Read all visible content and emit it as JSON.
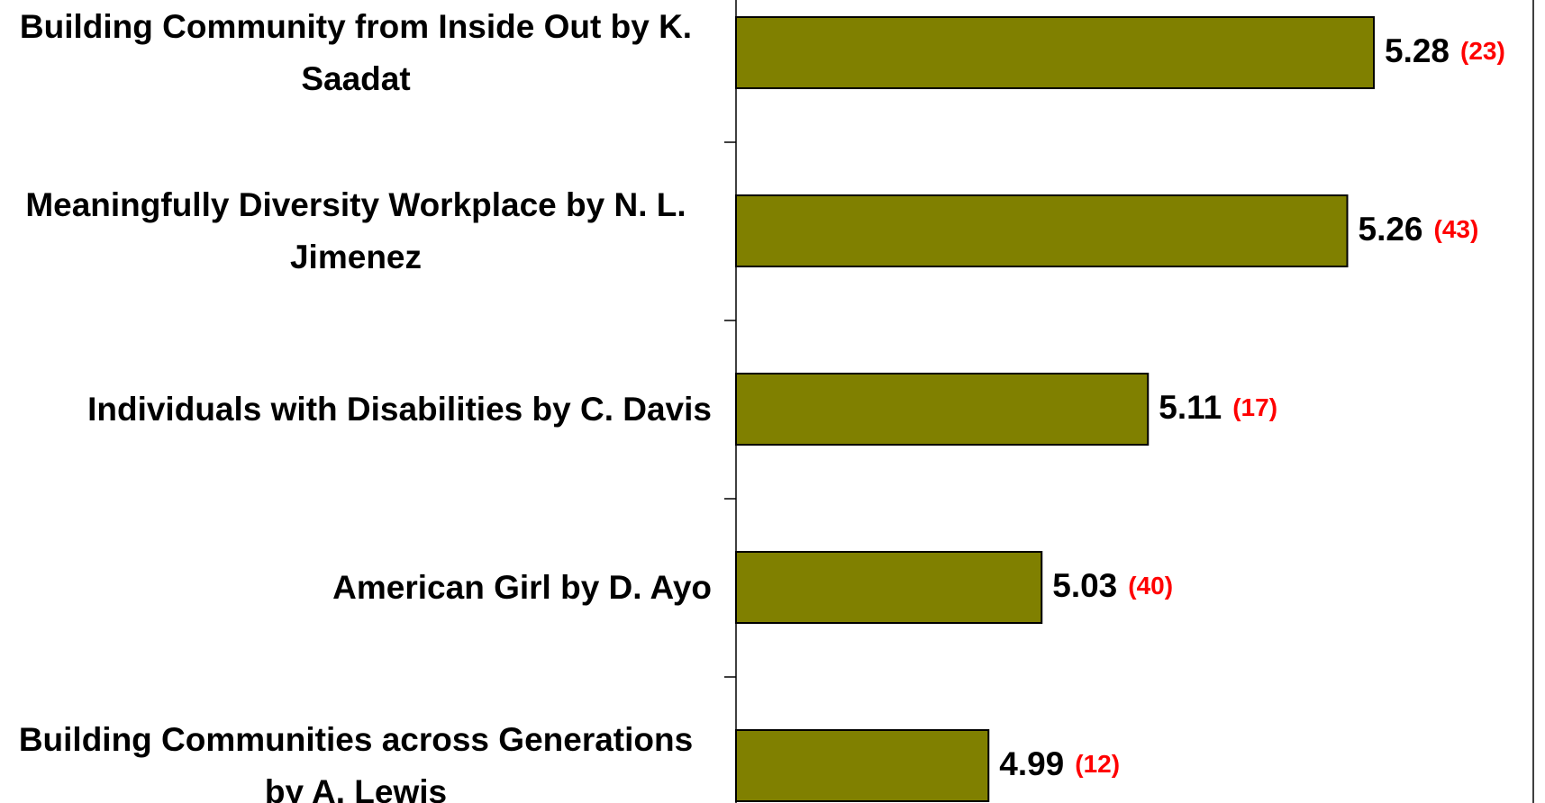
{
  "chart_data": {
    "type": "bar",
    "orientation": "horizontal",
    "categories": [
      "Building Community from Inside Out by K. Saadat",
      "Meaningfully Diversity Workplace by N. L. Jimenez",
      "Individuals with Disabilities by C. Davis",
      "American Girl by D. Ayo",
      "Building Communities across Generations by A. Lewis"
    ],
    "values": [
      5.28,
      5.26,
      5.11,
      5.03,
      4.99
    ],
    "counts": [
      23,
      43,
      17,
      40,
      12
    ],
    "count_labels": [
      "(23)",
      "(43)",
      "(17)",
      "(40)",
      "(12)"
    ],
    "color": "#808000",
    "count_color": "#ff0000",
    "xlim": [
      4.8,
      5.4
    ]
  }
}
